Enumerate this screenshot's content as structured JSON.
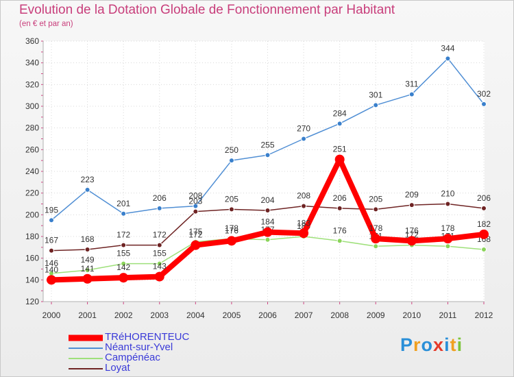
{
  "header": {
    "title": "Evolution de la Dotation Globale de Fonctionnement par Habitant",
    "subtitle": "(en € et par an)"
  },
  "chart_data": {
    "type": "line",
    "title": "Evolution de la Dotation Globale de Fonctionnement par Habitant",
    "subtitle": "(en € et par an)",
    "xlabel": "",
    "ylabel": "",
    "categories": [
      "2000",
      "2001",
      "2002",
      "2003",
      "2004",
      "2005",
      "2006",
      "2007",
      "2008",
      "2009",
      "2010",
      "2011",
      "2012"
    ],
    "ylim": [
      120,
      360
    ],
    "yticks": [
      120,
      140,
      160,
      180,
      200,
      220,
      240,
      260,
      280,
      300,
      320,
      340,
      360
    ],
    "grid": true,
    "legend_position": "bottom-left",
    "series": [
      {
        "name": "Néant-sur-Yvel",
        "color": "#4f8ed4",
        "marker": "#3a80cc",
        "values": [
          195,
          223,
          201,
          206,
          208,
          250,
          255,
          270,
          284,
          301,
          311,
          344,
          302
        ]
      },
      {
        "name": "Loyat",
        "color": "#6e2323",
        "marker": "#6e2323",
        "values": [
          167,
          168,
          172,
          172,
          203,
          205,
          204,
          208,
          206,
          205,
          209,
          210,
          206
        ]
      },
      {
        "name": "Campénéac",
        "color": "#9ee07a",
        "marker": "#8bd45a",
        "values": [
          146,
          149,
          155,
          155,
          175,
          178,
          177,
          180,
          176,
          171,
          172,
          171,
          168
        ]
      },
      {
        "name": "TRéHORENTEUC",
        "color": "#ff0000",
        "marker": "#ff0000",
        "values": [
          140,
          141,
          142,
          143,
          172,
          176,
          184,
          183,
          251,
          178,
          176,
          178,
          182
        ]
      }
    ]
  },
  "legend": {
    "items": [
      {
        "label": "TRéHORENTEUC",
        "color": "#ff0000"
      },
      {
        "label": "Néant-sur-Yvel",
        "color": "#4f8ed4"
      },
      {
        "label": "Campénéac",
        "color": "#9ee07a"
      },
      {
        "label": "Loyat",
        "color": "#6e2323"
      }
    ]
  },
  "brand": {
    "letters": [
      "P",
      "r",
      "o",
      "x",
      "i",
      "t",
      "i"
    ],
    "colors": [
      "#2a8fd8",
      "#f0a020",
      "#2a8fd8",
      "#e53a2a",
      "#2a8fd8",
      "#f0a020",
      "#7cc43a"
    ]
  }
}
